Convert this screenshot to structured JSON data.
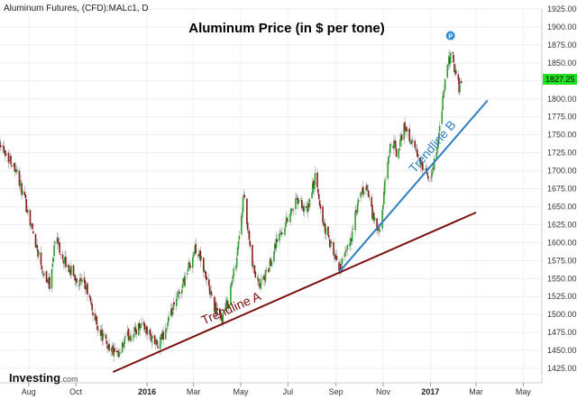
{
  "header": {
    "instrument": "Aluminum Futures, (CFD):MALc1, D"
  },
  "watermark": {
    "brand": "Investing",
    "suffix": ".com"
  },
  "chart_data": {
    "type": "candlestick",
    "title": "Aluminum Price (in $ per tone)",
    "xlabel": "",
    "ylabel": "",
    "ylim": [
      1405,
      1925
    ],
    "grid": true,
    "y_ticks": [
      1425,
      1450,
      1475,
      1500,
      1525,
      1550,
      1575,
      1600,
      1625,
      1650,
      1675,
      1700,
      1725,
      1750,
      1775,
      1800,
      1825,
      1850,
      1875,
      1900,
      1925
    ],
    "y_tick_labels": [
      "1425.00",
      "1450.00",
      "1475.00",
      "1500.00",
      "1525.00",
      "1550.00",
      "1575.00",
      "1600.00",
      "1625.00",
      "1650.00",
      "1675.00",
      "1700.00",
      "1725.00",
      "1750.00",
      "1775.00",
      "1800.00",
      "1825.00",
      "1850.00",
      "1875.00",
      "1900.00",
      "1925.00"
    ],
    "x_ticks": [
      {
        "label": "Aug",
        "date": "2015-08-01",
        "bold": false
      },
      {
        "label": "Oct",
        "date": "2015-10-01",
        "bold": false
      },
      {
        "label": "2016",
        "date": "2016-01-01",
        "bold": true
      },
      {
        "label": "Mar",
        "date": "2016-03-01",
        "bold": false
      },
      {
        "label": "May",
        "date": "2016-05-01",
        "bold": false
      },
      {
        "label": "Jul",
        "date": "2016-07-01",
        "bold": false
      },
      {
        "label": "Sep",
        "date": "2016-09-01",
        "bold": false
      },
      {
        "label": "Nov",
        "date": "2016-11-01",
        "bold": false
      },
      {
        "label": "2017",
        "date": "2017-01-01",
        "bold": true
      },
      {
        "label": "Mar",
        "date": "2017-03-01",
        "bold": false
      },
      {
        "label": "May",
        "date": "2017-05-01",
        "bold": false
      }
    ],
    "x_range": [
      "2015-06-25",
      "2017-05-25"
    ],
    "last_value": 1827.25,
    "last_value_label": "1827.25",
    "colors": {
      "up": "#2ca02c",
      "down": "#8b1a1a",
      "wick": "#999999",
      "trendline_a": "#7a1010",
      "trendline_b": "#2f7fc1",
      "last_value_bg": "#22e022",
      "marker": "#2f8ed6"
    },
    "close_path": [
      [
        "2015-06-25",
        1742
      ],
      [
        "2015-07-05",
        1720
      ],
      [
        "2015-07-15",
        1705
      ],
      [
        "2015-07-25",
        1665
      ],
      [
        "2015-08-01",
        1640
      ],
      [
        "2015-08-10",
        1600
      ],
      [
        "2015-08-20",
        1560
      ],
      [
        "2015-08-28",
        1542
      ],
      [
        "2015-09-05",
        1610
      ],
      [
        "2015-09-15",
        1575
      ],
      [
        "2015-09-25",
        1560
      ],
      [
        "2015-10-05",
        1545
      ],
      [
        "2015-10-15",
        1535
      ],
      [
        "2015-10-25",
        1495
      ],
      [
        "2015-11-05",
        1468
      ],
      [
        "2015-11-15",
        1452
      ],
      [
        "2015-11-25",
        1440
      ],
      [
        "2015-12-05",
        1468
      ],
      [
        "2015-12-15",
        1475
      ],
      [
        "2015-12-25",
        1488
      ],
      [
        "2016-01-05",
        1470
      ],
      [
        "2016-01-15",
        1455
      ],
      [
        "2016-01-25",
        1480
      ],
      [
        "2016-02-05",
        1510
      ],
      [
        "2016-02-15",
        1540
      ],
      [
        "2016-02-25",
        1570
      ],
      [
        "2016-03-05",
        1595
      ],
      [
        "2016-03-15",
        1560
      ],
      [
        "2016-03-25",
        1520
      ],
      [
        "2016-04-05",
        1490
      ],
      [
        "2016-04-15",
        1520
      ],
      [
        "2016-04-25",
        1575
      ],
      [
        "2016-05-05",
        1665
      ],
      [
        "2016-05-15",
        1570
      ],
      [
        "2016-05-25",
        1540
      ],
      [
        "2016-06-05",
        1560
      ],
      [
        "2016-06-15",
        1600
      ],
      [
        "2016-06-25",
        1620
      ],
      [
        "2016-07-05",
        1645
      ],
      [
        "2016-07-15",
        1660
      ],
      [
        "2016-07-25",
        1640
      ],
      [
        "2016-08-05",
        1690
      ],
      [
        "2016-08-15",
        1630
      ],
      [
        "2016-08-25",
        1595
      ],
      [
        "2016-09-05",
        1565
      ],
      [
        "2016-09-12",
        1578
      ],
      [
        "2016-09-20",
        1605
      ],
      [
        "2016-10-01",
        1660
      ],
      [
        "2016-10-10",
        1680
      ],
      [
        "2016-10-20",
        1630
      ],
      [
        "2016-10-28",
        1612
      ],
      [
        "2016-11-05",
        1700
      ],
      [
        "2016-11-12",
        1745
      ],
      [
        "2016-11-20",
        1720
      ],
      [
        "2016-11-28",
        1765
      ],
      [
        "2016-12-05",
        1745
      ],
      [
        "2016-12-15",
        1722
      ],
      [
        "2016-12-22",
        1700
      ],
      [
        "2017-01-01",
        1690
      ],
      [
        "2017-01-08",
        1720
      ],
      [
        "2017-01-15",
        1780
      ],
      [
        "2017-01-22",
        1840
      ],
      [
        "2017-01-28",
        1865
      ],
      [
        "2017-02-02",
        1840
      ],
      [
        "2017-02-07",
        1815
      ],
      [
        "2017-02-12",
        1827
      ]
    ],
    "trendlines": [
      {
        "name": "Trendline A",
        "start": [
          "2015-11-18",
          1420
        ],
        "end": [
          "2017-03-01",
          1642
        ]
      },
      {
        "name": "Trendline B",
        "start": [
          "2016-09-06",
          1560
        ],
        "end": [
          "2017-03-16",
          1798
        ]
      }
    ],
    "marker": {
      "label": "P",
      "date": "2017-01-27",
      "value": 1888
    }
  }
}
